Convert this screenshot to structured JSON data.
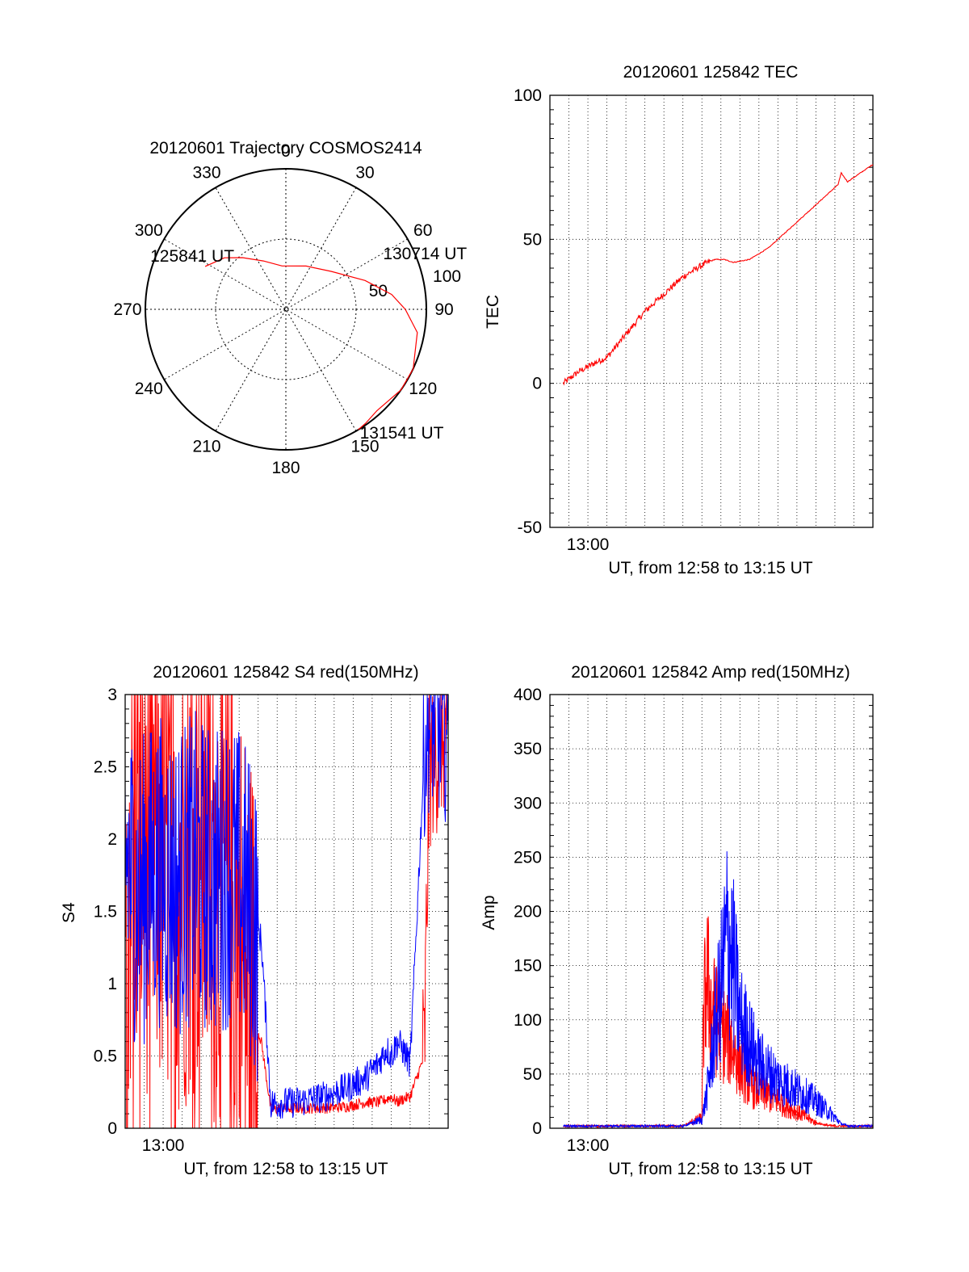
{
  "chart_data": [
    {
      "type": "polar",
      "title": "20120601 Trajectory COSMOS2414",
      "angle_labels": [
        "0",
        "30",
        "60",
        "90",
        "120",
        "150",
        "180",
        "210",
        "240",
        "270",
        "300",
        "330"
      ],
      "radius_labels": [
        "50",
        "100"
      ],
      "rlim": [
        0,
        100
      ],
      "grid": true,
      "series": [
        {
          "color": "#ff0000",
          "points": [
            [
              -62,
              65
            ],
            [
              -50,
              57
            ],
            [
              -40,
              48
            ],
            [
              -25,
              38
            ],
            [
              -5,
              31
            ],
            [
              25,
              34
            ],
            [
              50,
              42
            ],
            [
              70,
              60
            ],
            [
              82,
              76
            ],
            [
              90,
              85
            ],
            [
              100,
              95
            ],
            [
              115,
              100
            ],
            [
              125,
              100
            ],
            [
              138,
              97
            ],
            [
              145,
              99
            ],
            [
              149,
              100
            ]
          ]
        }
      ],
      "annotations": [
        {
          "text": "125841 UT",
          "az": -62,
          "r": 65
        },
        {
          "text": "130714 UT",
          "az": 60,
          "r": 48
        },
        {
          "text": "131541 UT",
          "az": 149,
          "r": 100
        }
      ]
    },
    {
      "type": "line",
      "title": "20120601 125842 TEC",
      "xlabel": "UT, from 12:58 to 13:15 UT",
      "ylabel": "TEC",
      "xlim": [
        "12:58",
        "13:15"
      ],
      "ylim": [
        -50,
        100
      ],
      "yticks": [
        -50,
        0,
        50,
        100
      ],
      "xtick_labels": [
        {
          "value": "13:00",
          "label": "13:00"
        }
      ],
      "grid": true,
      "series": [
        {
          "color": "#ff0000",
          "x": [
            "12:58:42",
            "12:59:30",
            "13:00:20",
            "13:01:00",
            "13:02:00",
            "13:03:00",
            "13:04:00",
            "13:05:00",
            "13:06:00",
            "13:06:40",
            "13:07:10",
            "13:07:40",
            "13:08:30",
            "13:09:30",
            "13:10:30",
            "13:11:30",
            "13:12:30",
            "13:13:10",
            "13:13:20",
            "13:13:40",
            "13:14:20",
            "13:15:00"
          ],
          "y": [
            0,
            4,
            7,
            9,
            17,
            25,
            31,
            37,
            41,
            43,
            43,
            42,
            43,
            47,
            53,
            59,
            65,
            69,
            73,
            70,
            73,
            76
          ]
        }
      ]
    },
    {
      "type": "line",
      "title": "20120601 125842 S4 red(150MHz)",
      "xlabel": "UT, from 12:58 to 13:15 UT",
      "ylabel": "S4",
      "xlim": [
        "12:58",
        "13:15"
      ],
      "ylim": [
        0,
        3
      ],
      "yticks": [
        0,
        0.5,
        1,
        1.5,
        2,
        2.5,
        3
      ],
      "xtick_labels": [
        {
          "value": "13:00",
          "label": "13:00"
        }
      ],
      "grid": true,
      "series": [
        {
          "color": "#ff0000",
          "x": [
            "12:58:00",
            "12:58:40",
            "12:59:40",
            "13:00:40",
            "13:01:40",
            "13:02:40",
            "13:03:30",
            "13:04:00",
            "13:04:40",
            "13:05:10",
            "13:05:40",
            "13:07:00",
            "13:08:30",
            "13:09:40",
            "13:10:40",
            "13:11:20",
            "13:11:45",
            "13:12:00",
            "13:12:20",
            "13:12:35",
            "13:13:00",
            "13:13:45",
            "13:14:00",
            "13:15:00"
          ],
          "y": [
            1.8,
            2.2,
            2.0,
            1.9,
            2.1,
            1.8,
            1.5,
            1.2,
            0.8,
            0.6,
            0.13,
            0.14,
            0.14,
            0.15,
            0.18,
            0.18,
            0.2,
            0.22,
            0.18,
            0.2,
            0.22,
            0.5,
            2.5,
            2.8
          ]
        },
        {
          "color": "#0000ff",
          "x": [
            "12:58:00",
            "12:58:40",
            "12:59:40",
            "13:00:40",
            "13:01:40",
            "13:02:40",
            "13:03:30",
            "13:04:00",
            "13:04:40",
            "13:05:10",
            "13:05:40",
            "13:07:00",
            "13:08:30",
            "13:09:40",
            "13:10:40",
            "13:11:20",
            "13:11:45",
            "13:12:00",
            "13:12:20",
            "13:12:35",
            "13:13:00",
            "13:13:45",
            "13:14:00",
            "13:15:00"
          ],
          "y": [
            1.9,
            1.6,
            1.8,
            1.7,
            1.8,
            1.7,
            1.8,
            1.7,
            1.5,
            1.3,
            0.17,
            0.18,
            0.22,
            0.28,
            0.35,
            0.45,
            0.55,
            0.5,
            0.6,
            0.55,
            0.45,
            2.6,
            2.8,
            2.7
          ]
        }
      ]
    },
    {
      "type": "line",
      "title": "20120601 125842 Amp red(150MHz)",
      "xlabel": "UT, from 12:58 to 13:15 UT",
      "ylabel": "Amp",
      "xlim": [
        "12:58",
        "13:15"
      ],
      "ylim": [
        0,
        400
      ],
      "yticks": [
        0,
        50,
        100,
        150,
        200,
        250,
        300,
        350,
        400
      ],
      "xtick_labels": [
        {
          "value": "13:00",
          "label": "13:00"
        }
      ],
      "grid": true,
      "series": [
        {
          "color": "#ff0000",
          "x": [
            "12:58:42",
            "13:05:00",
            "13:06:00",
            "13:06:05",
            "13:06:15",
            "13:06:30",
            "13:07:00",
            "13:07:30",
            "13:08:00",
            "13:08:30",
            "13:09:30",
            "13:10:30",
            "13:11:30",
            "13:12:00",
            "13:12:30",
            "13:13:00",
            "13:15:00"
          ],
          "y": [
            2,
            2,
            10,
            100,
            140,
            110,
            90,
            80,
            60,
            40,
            30,
            20,
            10,
            5,
            3,
            2,
            2
          ]
        },
        {
          "color": "#0000ff",
          "x": [
            "12:58:42",
            "13:05:00",
            "13:06:00",
            "13:06:20",
            "13:06:40",
            "13:07:00",
            "13:07:20",
            "13:07:40",
            "13:08:00",
            "13:08:30",
            "13:09:00",
            "13:10:00",
            "13:11:00",
            "13:12:00",
            "13:12:40",
            "13:13:00",
            "13:13:20",
            "13:13:45",
            "13:15:00"
          ],
          "y": [
            2,
            2,
            8,
            40,
            90,
            130,
            180,
            150,
            100,
            80,
            60,
            45,
            35,
            25,
            15,
            10,
            4,
            2,
            2
          ]
        }
      ]
    }
  ]
}
